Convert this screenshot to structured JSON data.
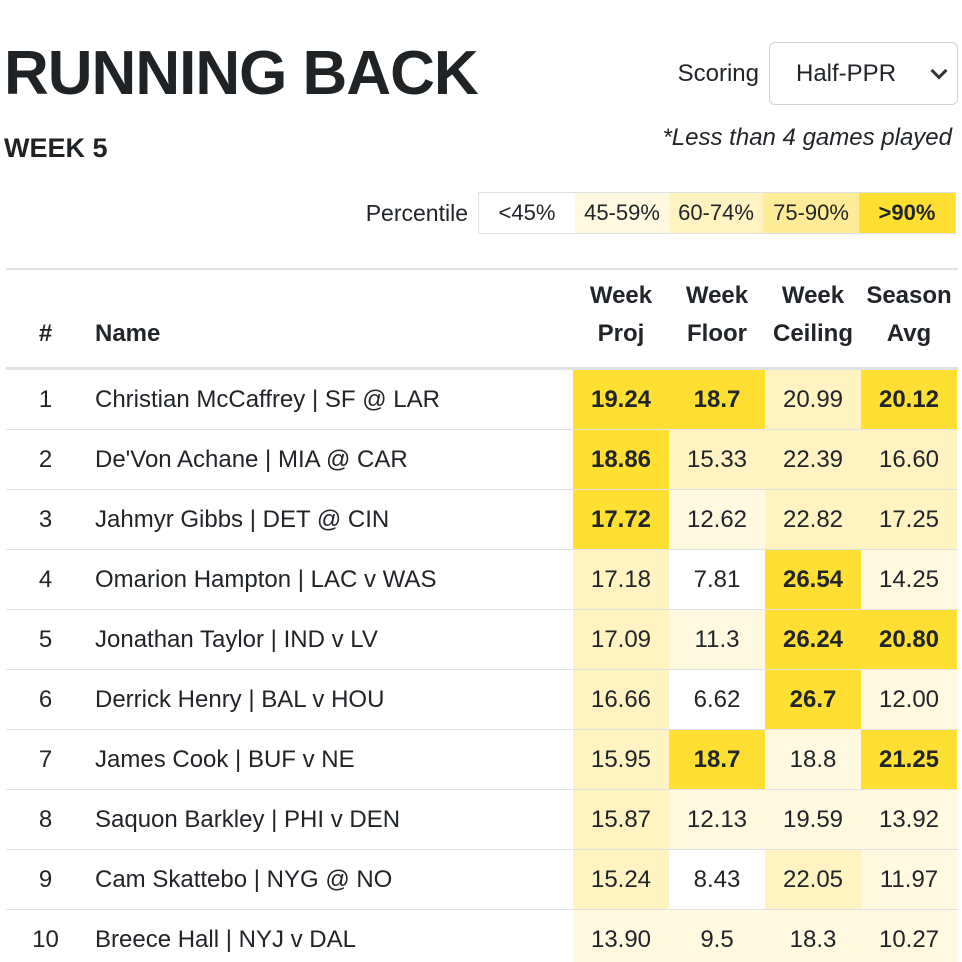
{
  "header": {
    "title": "RUNNING BACK",
    "week": "WEEK 5"
  },
  "scoring": {
    "label": "Scoring",
    "selected": "Half-PPR"
  },
  "note": "*Less than 4 games played",
  "legend": {
    "label": "Percentile",
    "tiers": [
      {
        "text": "<45%",
        "color": "#ffffff",
        "bold": false
      },
      {
        "text": "45-59%",
        "color": "#fff9e0",
        "bold": false
      },
      {
        "text": "60-74%",
        "color": "#fff3c2",
        "bold": false
      },
      {
        "text": "75-90%",
        "color": "#ffec99",
        "bold": false
      },
      {
        "text": ">90%",
        "color": "#ffe032",
        "bold": true
      }
    ]
  },
  "table": {
    "columns": {
      "rank": "#",
      "name": "Name",
      "proj_1": "Week",
      "proj_2": "Proj",
      "floor_1": "Week",
      "floor_2": "Floor",
      "ceiling_1": "Week",
      "ceiling_2": "Ceiling",
      "avg_1": "Season",
      "avg_2": "Avg"
    },
    "rows": [
      {
        "rank": "1",
        "name": "Christian McCaffrey | SF @ LAR",
        "proj": "19.24",
        "proj_tier": 4,
        "floor": "18.7",
        "floor_tier": 4,
        "ceiling": "20.99",
        "ceiling_tier": 2,
        "avg": "20.12",
        "avg_tier": 4
      },
      {
        "rank": "2",
        "name": "De'Von Achane | MIA @ CAR",
        "proj": "18.86",
        "proj_tier": 4,
        "floor": "15.33",
        "floor_tier": 2,
        "ceiling": "22.39",
        "ceiling_tier": 2,
        "avg": "16.60",
        "avg_tier": 2
      },
      {
        "rank": "3",
        "name": "Jahmyr Gibbs | DET @ CIN",
        "proj": "17.72",
        "proj_tier": 4,
        "floor": "12.62",
        "floor_tier": 1,
        "ceiling": "22.82",
        "ceiling_tier": 2,
        "avg": "17.25",
        "avg_tier": 2
      },
      {
        "rank": "4",
        "name": "Omarion Hampton | LAC v WAS",
        "proj": "17.18",
        "proj_tier": 2,
        "floor": "7.81",
        "floor_tier": 0,
        "ceiling": "26.54",
        "ceiling_tier": 4,
        "avg": "14.25",
        "avg_tier": 1
      },
      {
        "rank": "5",
        "name": "Jonathan Taylor | IND v LV",
        "proj": "17.09",
        "proj_tier": 2,
        "floor": "11.3",
        "floor_tier": 1,
        "ceiling": "26.24",
        "ceiling_tier": 4,
        "avg": "20.80",
        "avg_tier": 4
      },
      {
        "rank": "6",
        "name": "Derrick Henry | BAL v HOU",
        "proj": "16.66",
        "proj_tier": 2,
        "floor": "6.62",
        "floor_tier": 0,
        "ceiling": "26.7",
        "ceiling_tier": 4,
        "avg": "12.00",
        "avg_tier": 1
      },
      {
        "rank": "7",
        "name": "James Cook | BUF v NE",
        "proj": "15.95",
        "proj_tier": 2,
        "floor": "18.7",
        "floor_tier": 4,
        "ceiling": "18.8",
        "ceiling_tier": 1,
        "avg": "21.25",
        "avg_tier": 4
      },
      {
        "rank": "8",
        "name": "Saquon Barkley | PHI v DEN",
        "proj": "15.87",
        "proj_tier": 2,
        "floor": "12.13",
        "floor_tier": 1,
        "ceiling": "19.59",
        "ceiling_tier": 1,
        "avg": "13.92",
        "avg_tier": 1
      },
      {
        "rank": "9",
        "name": "Cam Skattebo | NYG @ NO",
        "proj": "15.24",
        "proj_tier": 2,
        "floor": "8.43",
        "floor_tier": 0,
        "ceiling": "22.05",
        "ceiling_tier": 2,
        "avg": "11.97",
        "avg_tier": 1
      },
      {
        "rank": "10",
        "name": "Breece Hall | NYJ v DAL",
        "proj": "13.90",
        "proj_tier": 1,
        "floor": "9.5",
        "floor_tier": 1,
        "ceiling": "18.3",
        "ceiling_tier": 1,
        "avg": "10.27",
        "avg_tier": 1
      }
    ]
  }
}
